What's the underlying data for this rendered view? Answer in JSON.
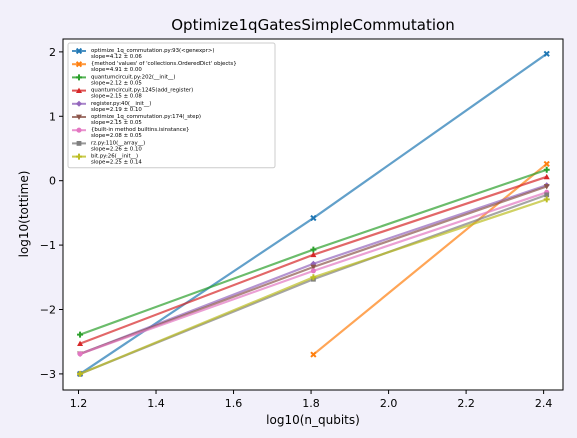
{
  "chart_data": {
    "type": "line",
    "title": "Optimize1qGatesSimpleCommutation",
    "xlabel": "log10(n_qubits)",
    "ylabel": "log10(tottime)",
    "xlim": [
      1.16,
      2.45
    ],
    "ylim": [
      -3.25,
      2.2
    ],
    "xticks": [
      1.2,
      1.4,
      1.6,
      1.8,
      2.0,
      2.2,
      2.4
    ],
    "yticks": [
      2,
      1,
      0,
      -1,
      -2,
      -3
    ],
    "xtick_labels": [
      "1.2",
      "1.4",
      "1.6",
      "1.8",
      "2.0",
      "2.2",
      "2.4"
    ],
    "ytick_labels": [
      "2",
      "1",
      "0",
      "−1",
      "−2",
      "−3"
    ],
    "grid": false,
    "legend_position": "top-left",
    "series": [
      {
        "name": "optimize_1q_commutation.py:93(<genexpr>)",
        "slope": "slope=4.12 ± 0.06",
        "color": "#1f77b4",
        "marker": "x",
        "x": [
          1.204,
          1.806,
          2.408
        ],
        "y": [
          -3.0,
          -0.58,
          1.97
        ]
      },
      {
        "name": "{method 'values' of 'collections.OrderedDict' objects}",
        "slope": "slope=4.91 ± 0.00",
        "color": "#ff7f0e",
        "marker": "x",
        "x": [
          1.806,
          2.408
        ],
        "y": [
          -2.7,
          0.26
        ]
      },
      {
        "name": "quantumcircuit.py:202(__init__)",
        "slope": "slope=2.12 ± 0.05",
        "color": "#2ca02c",
        "marker": "plus",
        "x": [
          1.204,
          1.806,
          2.408
        ],
        "y": [
          -2.39,
          -1.07,
          0.17
        ]
      },
      {
        "name": "quantumcircuit.py:1245(add_register)",
        "slope": "slope=2.15 ± 0.08",
        "color": "#d62728",
        "marker": "triangle",
        "x": [
          1.204,
          1.806,
          2.408
        ],
        "y": [
          -2.53,
          -1.15,
          0.06
        ]
      },
      {
        "name": "register.py:40(__init__)",
        "slope": "slope=2.19 ± 0.10",
        "color": "#9467bd",
        "marker": "diamond",
        "x": [
          1.204,
          1.806,
          2.408
        ],
        "y": [
          -2.69,
          -1.29,
          -0.07
        ]
      },
      {
        "name": "optimize_1q_commutation.py:174(_step)",
        "slope": "slope=2.15 ± 0.05",
        "color": "#8c564b",
        "marker": "triangle-down",
        "x": [
          1.204,
          1.806,
          2.408
        ],
        "y": [
          -2.69,
          -1.34,
          -0.09
        ]
      },
      {
        "name": "{built-in method builtins.isinstance}",
        "slope": "slope=2.08 ± 0.05",
        "color": "#e377c2",
        "marker": "circle",
        "x": [
          1.204,
          1.806,
          2.408
        ],
        "y": [
          -2.69,
          -1.4,
          -0.18
        ]
      },
      {
        "name": "rz.py:110(__array__)",
        "slope": "slope=2.26 ± 0.10",
        "color": "#7f7f7f",
        "marker": "square",
        "x": [
          1.204,
          1.806,
          2.408
        ],
        "y": [
          -3.0,
          -1.53,
          -0.22
        ]
      },
      {
        "name": "bit.py:26(__init__)",
        "slope": "slope=2.25 ± 0.14",
        "color": "#bcbd22",
        "marker": "plus",
        "x": [
          1.204,
          1.806,
          2.408
        ],
        "y": [
          -3.0,
          -1.5,
          -0.29
        ]
      }
    ]
  }
}
